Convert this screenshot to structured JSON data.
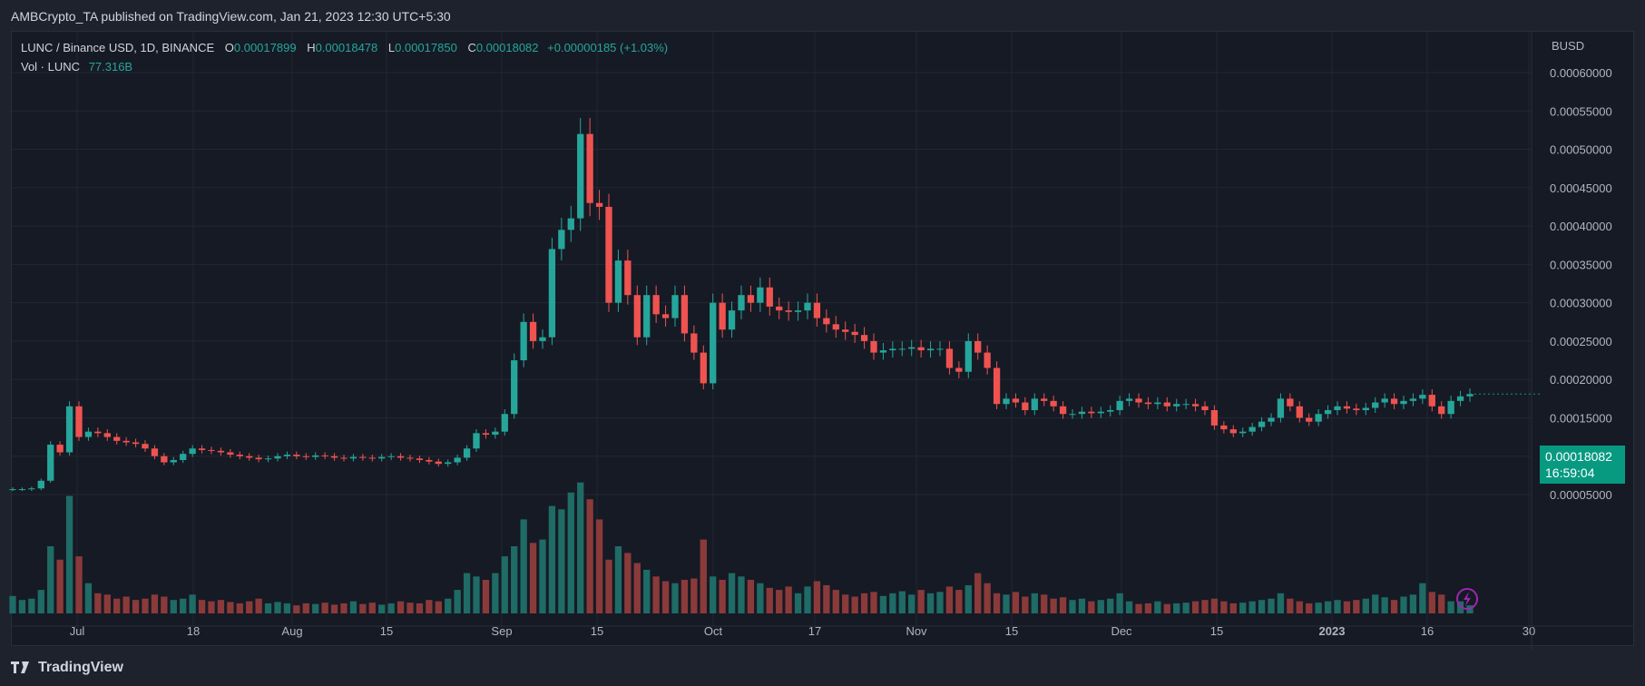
{
  "header": {
    "publisher_text": "AMBCrypto_TA published on TradingView.com, Jan 21, 2023 12:30 UTC+5:30"
  },
  "legend": {
    "symbol": "LUNC / Binance USD, 1D, BINANCE",
    "o_label": "O",
    "o": "0.00017899",
    "h_label": "H",
    "h": "0.00018478",
    "l_label": "L",
    "l": "0.00017850",
    "c_label": "C",
    "c": "0.00018082",
    "change": "+0.00000185 (+1.03%)",
    "vol_label": "Vol · LUNC",
    "vol": "77.316B"
  },
  "price_tag": {
    "price": "0.00018082",
    "countdown": "16:59:04"
  },
  "footer": {
    "brand": "TradingView"
  },
  "colors": {
    "up": "#26a69a",
    "down": "#ef5350",
    "up_vol": "#1f6b66",
    "down_vol": "#8b3a3a",
    "background": "#161a25",
    "grid": "#232733",
    "last_price": "#089981"
  },
  "chart_data": {
    "type": "candlestick",
    "currency_label": "BUSD",
    "ylim": [
      2e-05,
      0.00062
    ],
    "y_ticks": [
      "0.00005000",
      "0.00010000",
      "0.00015000",
      "0.00020000",
      "0.00025000",
      "0.00030000",
      "0.00035000",
      "0.00040000",
      "0.00045000",
      "0.00050000",
      "0.00055000",
      "0.00060000"
    ],
    "x_ticks": [
      "Jul",
      "18",
      "Aug",
      "15",
      "Sep",
      "15",
      "Oct",
      "17",
      "Nov",
      "15",
      "Dec",
      "15",
      "2023",
      "16",
      "30"
    ],
    "closes": [
      5.7e-05,
      5.7e-05,
      5.8e-05,
      6.8e-05,
      0.000115,
      0.000105,
      0.000165,
      0.000125,
      0.000132,
      0.00013,
      0.000125,
      0.00012,
      0.000118,
      0.000116,
      0.00011,
      0.0001,
      9.2e-05,
      9.5e-05,
      0.000103,
      0.00011,
      0.000108,
      0.000107,
      0.000105,
      0.000102,
      0.0001,
      9.8e-05,
      9.6e-05,
      9.7e-05,
      0.0001,
      0.000102,
      0.0001,
      9.9e-05,
      0.000101,
      0.0001,
      9.8e-05,
      9.7e-05,
      9.9e-05,
      9.8e-05,
      9.7e-05,
      9.9e-05,
      0.0001,
      9.8e-05,
      9.7e-05,
      9.5e-05,
      9.3e-05,
      9e-05,
      9.2e-05,
      9.8e-05,
      0.00011,
      0.00013,
      0.000128,
      0.000132,
      0.000155,
      0.000225,
      0.000275,
      0.00025,
      0.000255,
      0.00037,
      0.000395,
      0.00041,
      0.00052,
      0.00043,
      0.000425,
      0.0003,
      0.000355,
      0.00031,
      0.000255,
      0.00031,
      0.000285,
      0.00028,
      0.00031,
      0.00026,
      0.000235,
      0.000195,
      0.0003,
      0.000265,
      0.00029,
      0.00031,
      0.0003,
      0.00032,
      0.000295,
      0.00029,
      0.000288,
      0.00029,
      0.0003,
      0.00028,
      0.000272,
      0.000265,
      0.000262,
      0.000258,
      0.00025,
      0.000235,
      0.000238,
      0.00024,
      0.00024,
      0.000242,
      0.000238,
      0.00024,
      0.00024,
      0.000215,
      0.00021,
      0.00025,
      0.000235,
      0.000215,
      0.000168,
      0.000175,
      0.00017,
      0.00016,
      0.000175,
      0.000172,
      0.000165,
      0.000155,
      0.000155,
      0.000158,
      0.000156,
      0.000158,
      0.00016,
      0.000172,
      0.000175,
      0.00017,
      0.000168,
      0.00017,
      0.000165,
      0.000168,
      0.000168,
      0.000165,
      0.00016,
      0.00014,
      0.000135,
      0.00013,
      0.000132,
      0.000138,
      0.000145,
      0.00015,
      0.000175,
      0.000165,
      0.00015,
      0.000145,
      0.000155,
      0.00016,
      0.000165,
      0.000162,
      0.00016,
      0.000163,
      0.00017,
      0.000175,
      0.000168,
      0.000172,
      0.000175,
      0.00018,
      0.000165,
      0.000155,
      0.000172,
      0.000178,
      0.000181
    ],
    "volumes": [
      0.26,
      0.2,
      0.22,
      0.35,
      1.0,
      0.8,
      1.75,
      0.85,
      0.45,
      0.3,
      0.28,
      0.22,
      0.25,
      0.2,
      0.22,
      0.28,
      0.25,
      0.2,
      0.22,
      0.28,
      0.2,
      0.18,
      0.2,
      0.17,
      0.15,
      0.18,
      0.22,
      0.15,
      0.17,
      0.15,
      0.12,
      0.15,
      0.14,
      0.16,
      0.13,
      0.15,
      0.18,
      0.14,
      0.16,
      0.13,
      0.15,
      0.18,
      0.16,
      0.15,
      0.2,
      0.18,
      0.22,
      0.35,
      0.6,
      0.55,
      0.5,
      0.6,
      0.85,
      1.0,
      1.4,
      1.05,
      1.1,
      1.6,
      1.55,
      1.8,
      1.95,
      1.7,
      1.4,
      0.8,
      1.0,
      0.9,
      0.75,
      0.65,
      0.55,
      0.48,
      0.45,
      0.5,
      0.52,
      1.1,
      0.55,
      0.5,
      0.6,
      0.55,
      0.5,
      0.45,
      0.38,
      0.35,
      0.4,
      0.3,
      0.4,
      0.48,
      0.42,
      0.35,
      0.28,
      0.25,
      0.3,
      0.32,
      0.26,
      0.3,
      0.33,
      0.28,
      0.35,
      0.3,
      0.32,
      0.4,
      0.35,
      0.42,
      0.6,
      0.45,
      0.3,
      0.28,
      0.32,
      0.25,
      0.3,
      0.28,
      0.22,
      0.24,
      0.2,
      0.22,
      0.18,
      0.2,
      0.22,
      0.3,
      0.18,
      0.14,
      0.15,
      0.18,
      0.14,
      0.15,
      0.16,
      0.18,
      0.2,
      0.22,
      0.18,
      0.15,
      0.16,
      0.18,
      0.2,
      0.22,
      0.3,
      0.22,
      0.18,
      0.15,
      0.16,
      0.18,
      0.2,
      0.18,
      0.2,
      0.22,
      0.28,
      0.24,
      0.2,
      0.25,
      0.28,
      0.45,
      0.32,
      0.28,
      0.18,
      0.18,
      0.12
    ]
  }
}
